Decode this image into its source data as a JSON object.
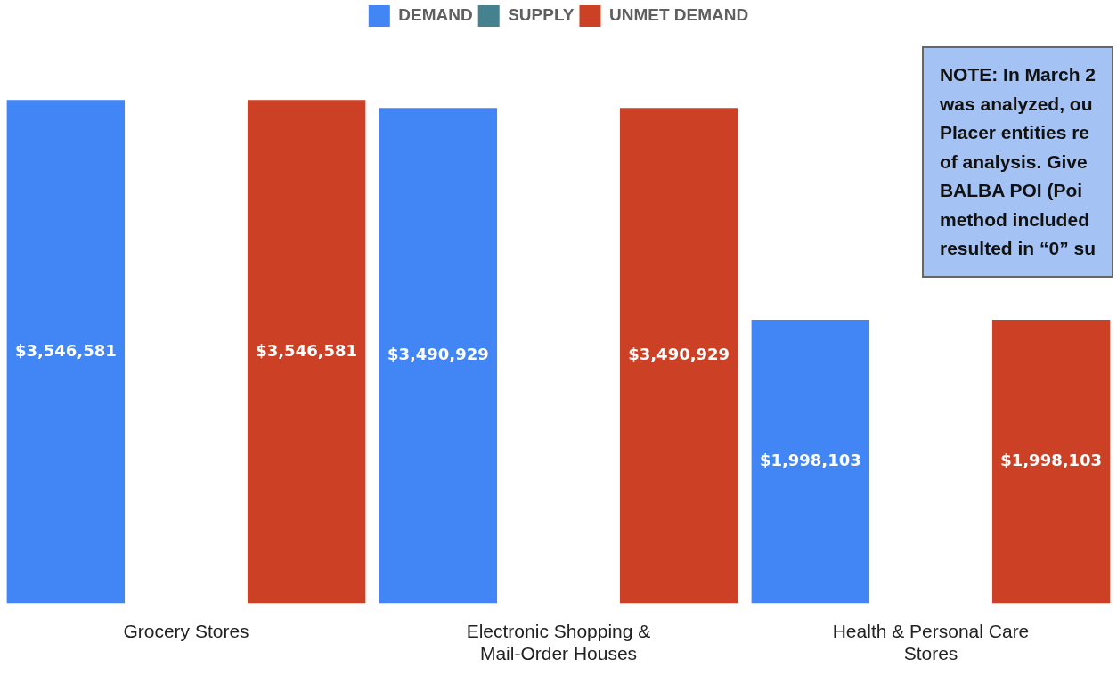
{
  "chart_data": {
    "type": "bar",
    "categories": [
      "Grocery Stores",
      "Electronic Shopping & Mail-Order Houses",
      "Health & Personal Care Stores"
    ],
    "legend": "top",
    "grid": false,
    "tick_labels": "x",
    "series": [
      {
        "name": "DEMAND",
        "color": "#4285f4",
        "values": [
          3546581,
          3490929,
          1998103
        ],
        "value_labels": [
          "$3,546,581",
          "$3,490,929",
          "$1,998,103"
        ]
      },
      {
        "name": "SUPPLY",
        "color": "#45818e",
        "values": [
          0,
          0,
          0
        ]
      },
      {
        "name": "UNMET DEMAND",
        "color": "#cc4125",
        "values": [
          3546581,
          3490929,
          1998103
        ],
        "value_labels": [
          "$3,546,581",
          "$3,490,929",
          "$1,998,103"
        ]
      }
    ],
    "annotations": [
      "NOTE: In March 2",
      "was analyzed, ou",
      "Placer entities re",
      "of analysis. Give",
      "BALBA POI (Poi",
      "method included",
      "resulted in “0” su"
    ]
  }
}
